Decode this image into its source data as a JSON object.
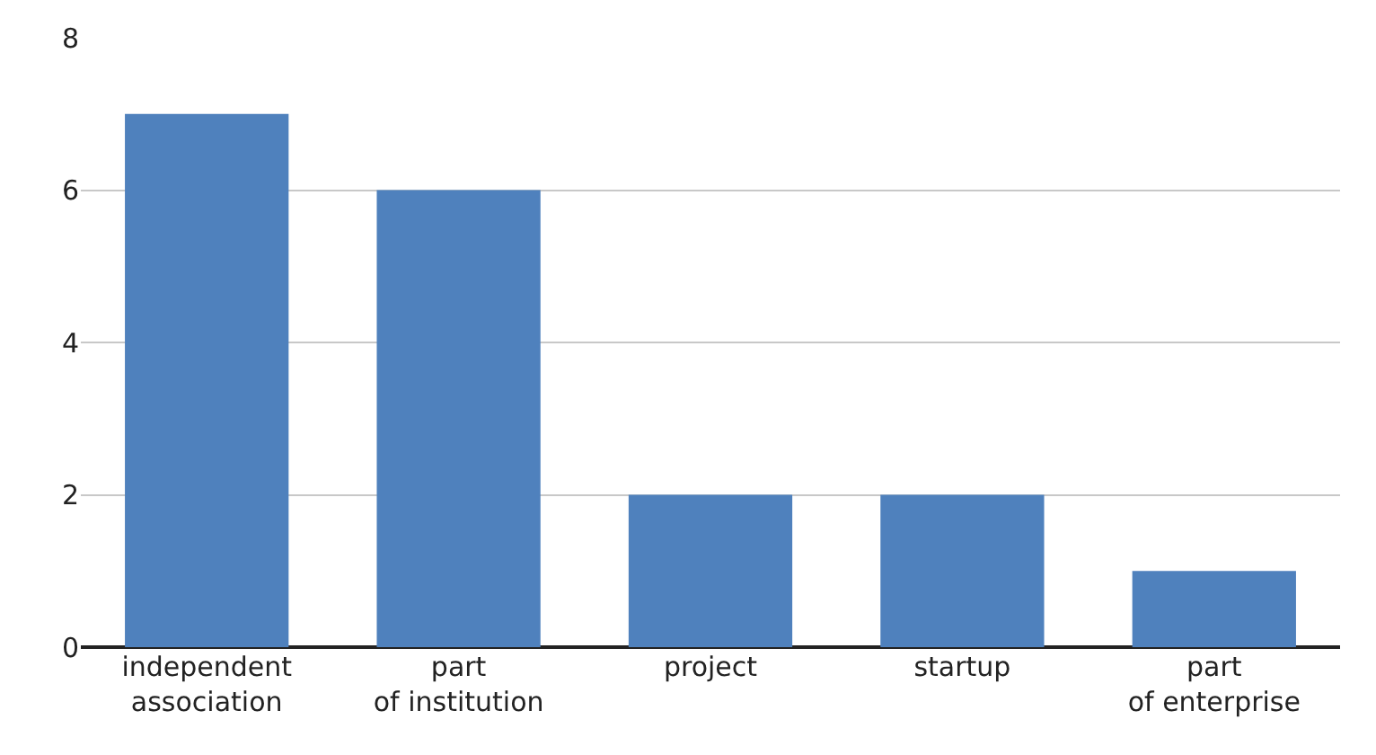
{
  "chart_data": {
    "type": "bar",
    "categories": [
      "independent association",
      "part of institution",
      "project",
      "startup",
      "part of enterprise"
    ],
    "values": [
      7,
      6,
      2,
      2,
      1
    ],
    "color": "#4f81bd",
    "ylim": [
      0,
      8
    ],
    "yticks": [
      0,
      2,
      4,
      6,
      8
    ],
    "grid": "y",
    "legend": false
  }
}
